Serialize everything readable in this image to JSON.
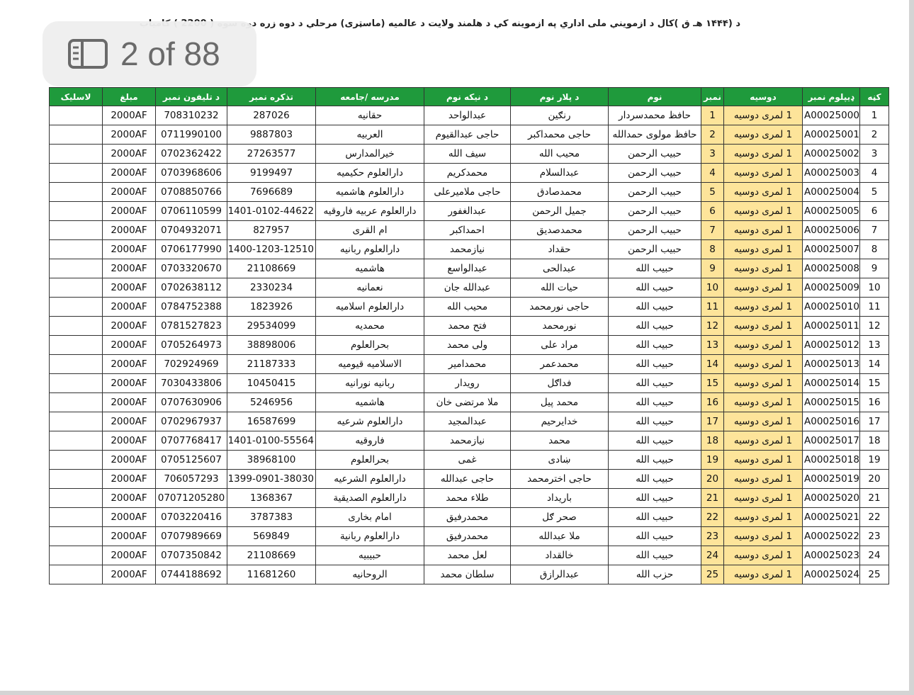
{
  "viewer": {
    "page_indicator": "2 of 88"
  },
  "header": {
    "title": "د (۱۴۴۴ هـ ق )کال د ازموینې ملی اداري په ازموینه کې د هلمند ولایت د عالمیه (ماسټری) مرحلې  د دوه زره دوه سوه ( 2200 ) کامیاب"
  },
  "table": {
    "columns": [
      "کڼه",
      "ډیپلوم نمبر",
      "دوسیه",
      "نمبر",
      "نوم",
      "د پلار نوم",
      "د نیکه نوم",
      "مدرسه /جامعه",
      "تذکره نمبر",
      "د تلیفون نمبر",
      "مبلغ",
      "لاسلیک"
    ],
    "rows": [
      [
        "1",
        "A00025000",
        "1 لمری دوسیه",
        "1",
        "حافظ محمدسردار",
        "رنګین",
        "عبدالواحد",
        "حقانیه",
        "287026",
        "708310232",
        "2000AF"
      ],
      [
        "2",
        "A00025001",
        "1 لمری دوسیه",
        "2",
        "حافظ مولوی حمدالله",
        "حاجی محمداکبر",
        "حاجی عبدالقیوم",
        "العربیه",
        "9887803",
        "0711990100",
        "2000AF"
      ],
      [
        "3",
        "A00025002",
        "1 لمری دوسیه",
        "3",
        "حبیب الرحمن",
        "محیب الله",
        "سیف الله",
        "خیرالمدارس",
        "27263577",
        "0702362422",
        "2000AF"
      ],
      [
        "4",
        "A00025003",
        "1 لمری دوسیه",
        "4",
        "حبیب الرحمن",
        "عبدالسلام",
        "محمدکریم",
        "دارالعلوم حکیمیه",
        "9199497",
        "0703968606",
        "2000AF"
      ],
      [
        "5",
        "A00025004",
        "1 لمری دوسیه",
        "5",
        "حبیب الرحمن",
        "محمدصادق",
        "حاجی ملامیرعلی",
        "دارالعلوم هاشمیه",
        "7696689",
        "0708850766",
        "2000AF"
      ],
      [
        "6",
        "A00025005",
        "1 لمری دوسیه",
        "6",
        "حبیب الرحمن",
        "جمیل الرحمن",
        "عبدالغفور",
        "دارالعلوم عربیه فاروقیه",
        "1401-0102-44622",
        "0706110599",
        "2000AF"
      ],
      [
        "7",
        "A00025006",
        "1 لمری دوسیه",
        "7",
        "حبیب الرحمن",
        "محمدصدیق",
        "احمداکبر",
        "ام القری",
        "827957",
        "0704932071",
        "2000AF"
      ],
      [
        "8",
        "A00025007",
        "1 لمری دوسیه",
        "8",
        "حبیب الرحمن",
        "حقداد",
        "نیازمحمد",
        "دارالعلوم ربانیه",
        "1400-1203-12510",
        "0706177990",
        "2000AF"
      ],
      [
        "9",
        "A00025008",
        "1 لمری دوسیه",
        "9",
        "حبیب الله",
        "عبدالحی",
        "عبدالواسع",
        "هاشمیه",
        "21108669",
        "0703320670",
        "2000AF"
      ],
      [
        "10",
        "A00025009",
        "1 لمری دوسیه",
        "10",
        "حبیب الله",
        "حیات الله",
        "عبدالله جان",
        "نعمانیه",
        "2330234",
        "0702638112",
        "2000AF"
      ],
      [
        "11",
        "A00025010",
        "1 لمری دوسیه",
        "11",
        "حبیب الله",
        "حاجی نورمحمد",
        "محیب الله",
        "دارالعلوم اسلامیه",
        "1823926",
        "0784752388",
        "2000AF"
      ],
      [
        "12",
        "A00025011",
        "1 لمری دوسیه",
        "12",
        "حبیب الله",
        "نورمحمد",
        "فتح محمد",
        "محمدیه",
        "29534099",
        "0781527823",
        "2000AF"
      ],
      [
        "13",
        "A00025012",
        "1 لمری دوسیه",
        "13",
        "حبیب الله",
        "مراد علی",
        "ولی محمد",
        "بحرالعلوم",
        "38898006",
        "0705264973",
        "2000AF"
      ],
      [
        "14",
        "A00025013",
        "1 لمری دوسیه",
        "14",
        "حبیب الله",
        "محمدعمر",
        "محمدامیر",
        "الاسلامیه قیومیه",
        "21187333",
        "702924969",
        "2000AF"
      ],
      [
        "15",
        "A00025014",
        "1 لمری دوسیه",
        "15",
        "حبیب الله",
        "فداګل",
        "رویدار",
        "ربانیه نورانیه",
        "10450415",
        "7030433806",
        "2000AF"
      ],
      [
        "16",
        "A00025015",
        "1 لمری دوسیه",
        "16",
        "حبیب الله",
        "محمد پیل",
        "ملا  مرتضی خان",
        "هاشمیه",
        "5246956",
        "0707630906",
        "2000AF"
      ],
      [
        "17",
        "A00025016",
        "1 لمری دوسیه",
        "17",
        "حبیب الله",
        "خدایرحیم",
        "عبدالمجید",
        "دارالعلوم شرعیه",
        "16587699",
        "0702967937",
        "2000AF"
      ],
      [
        "18",
        "A00025017",
        "1 لمری دوسیه",
        "18",
        "حبیب الله",
        "محمد",
        "نیازمحمد",
        "فاروقیه",
        "1401-0100-55564",
        "0707768417",
        "2000AF"
      ],
      [
        "19",
        "A00025018",
        "1 لمری دوسیه",
        "19",
        "حبیب الله",
        "ښادی",
        "غمی",
        "بحرالعلوم",
        "38968100",
        "0705125607",
        "2000AF"
      ],
      [
        "20",
        "A00025019",
        "1 لمری دوسیه",
        "20",
        "حبیب الله",
        "حاجی اخترمحمد",
        "حاجی عبدالله",
        "دارالعلوم الشرعیه",
        "1399-0901-38030",
        "706057293",
        "2000AF"
      ],
      [
        "21",
        "A00025020",
        "1 لمری دوسیه",
        "21",
        "حبیب الله",
        "باریداد",
        "طلاء محمد",
        "دارالعلوم الصدیقیة",
        "1368367",
        "07071205280",
        "2000AF"
      ],
      [
        "22",
        "A00025021",
        "1 لمری دوسیه",
        "22",
        "حبیب الله",
        "صحر ګل",
        "محمدرفیق",
        "امام بخاری",
        "3787383",
        "0703220416",
        "2000AF"
      ],
      [
        "23",
        "A00025022",
        "1 لمری دوسیه",
        "23",
        "حبیب الله",
        "ملا عبدالله",
        "محمدرفیق",
        "دارالعلوم ربانیة",
        "569849",
        "0707989669",
        "2000AF"
      ],
      [
        "24",
        "A00025023",
        "1 لمری دوسیه",
        "24",
        "حبیب الله",
        "خالقداد",
        "لعل محمد",
        "حبیبیه",
        "21108669",
        "0707350842",
        "2000AF"
      ],
      [
        "25",
        "A00025024",
        "1 لمری دوسیه",
        "25",
        "حزب الله",
        "عبدالرازق",
        "سلطان محمد",
        "الروحانیه",
        "11681260",
        "0744188692",
        "2000AF"
      ]
    ]
  }
}
